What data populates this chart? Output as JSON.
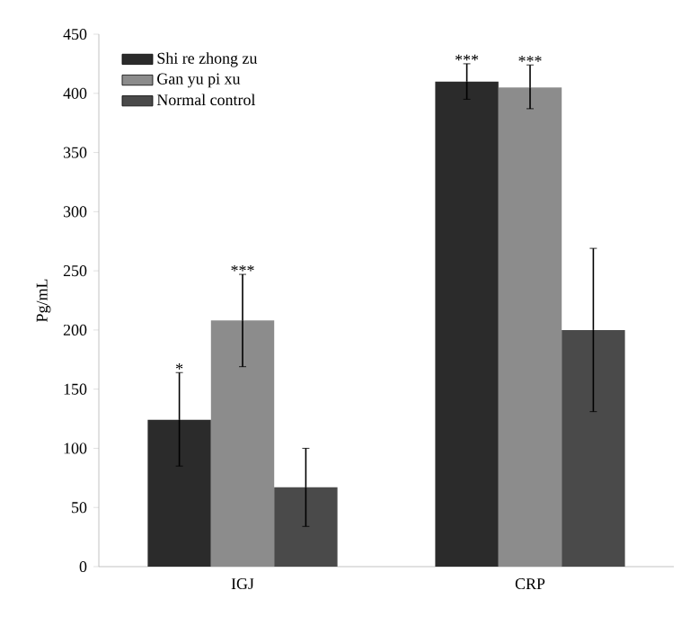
{
  "chart_data": {
    "type": "bar",
    "ylabel": "Pg/mL",
    "categories": [
      "IGJ",
      "CRP"
    ],
    "series": [
      {
        "name": "Shi re zhong zu",
        "color": "#2b2b2b",
        "values": [
          124,
          410
        ],
        "errors": [
          [
            85,
            164
          ],
          [
            395,
            425
          ]
        ],
        "value_labels": [
          "*",
          "***"
        ]
      },
      {
        "name": "Gan yu pi xu",
        "color": "#8c8c8c",
        "values": [
          208,
          405
        ],
        "errors": [
          [
            169,
            247
          ],
          [
            387,
            424
          ]
        ],
        "value_labels": [
          "***",
          "***"
        ]
      },
      {
        "name": "Normal control",
        "color": "#4a4a4a",
        "values": [
          67,
          200
        ],
        "errors": [
          [
            34,
            100
          ],
          [
            131,
            269
          ]
        ]
      }
    ],
    "ylim": [
      0,
      450
    ],
    "yticks": [
      0,
      50,
      100,
      150,
      200,
      250,
      300,
      350,
      400,
      450
    ],
    "grid": false,
    "legend": "top left"
  }
}
